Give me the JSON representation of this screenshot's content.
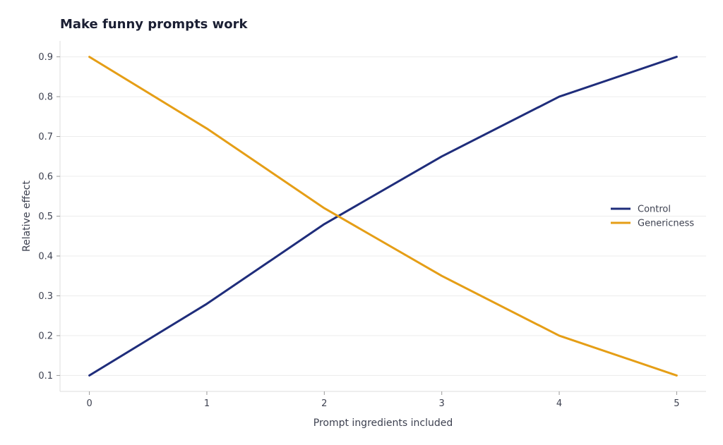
{
  "chart_data": {
    "type": "line",
    "title": "Make funny prompts work",
    "xlabel": "Prompt ingredients included",
    "ylabel": "Relative effect",
    "x": [
      0,
      1,
      2,
      3,
      4,
      5
    ],
    "x_ticks": [
      0,
      1,
      2,
      3,
      4,
      5
    ],
    "xlim": [
      -0.25,
      5.25
    ],
    "y_ticks": [
      0.1,
      0.2,
      0.3,
      0.4,
      0.5,
      0.6,
      0.7,
      0.8,
      0.9
    ],
    "ylim": [
      0.06,
      0.94
    ],
    "grid": true,
    "legend_position": "right",
    "series": [
      {
        "name": "Control",
        "color": "#1f2d7b",
        "values": [
          0.1,
          0.28,
          0.48,
          0.65,
          0.8,
          0.9
        ]
      },
      {
        "name": "Genericness",
        "color": "#e59e16",
        "values": [
          0.9,
          0.72,
          0.52,
          0.35,
          0.2,
          0.1
        ]
      }
    ]
  }
}
